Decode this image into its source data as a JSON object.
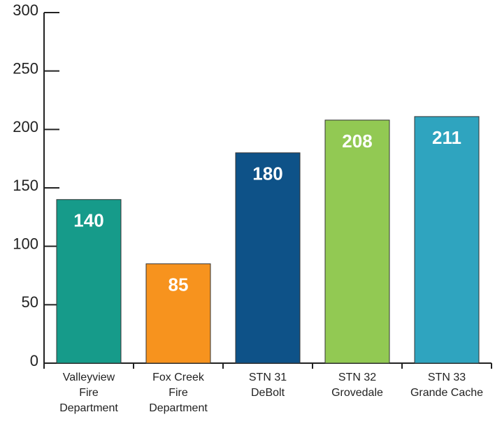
{
  "chart_data": {
    "type": "bar",
    "categories": [
      "Valleyview\nFire\nDepartment",
      "Fox Creek\nFire\nDepartment",
      "STN 31\nDeBolt",
      "STN 32\nGrovedale",
      "STN 33\nGrande Cache"
    ],
    "values": [
      140,
      85,
      180,
      208,
      211
    ],
    "colors": [
      "#169b8a",
      "#f7931e",
      "#0e5288",
      "#92c953",
      "#2fa4bf"
    ],
    "ylim": [
      0,
      300
    ],
    "yticks": [
      0,
      50,
      100,
      150,
      200,
      250,
      300
    ],
    "grid": false
  }
}
